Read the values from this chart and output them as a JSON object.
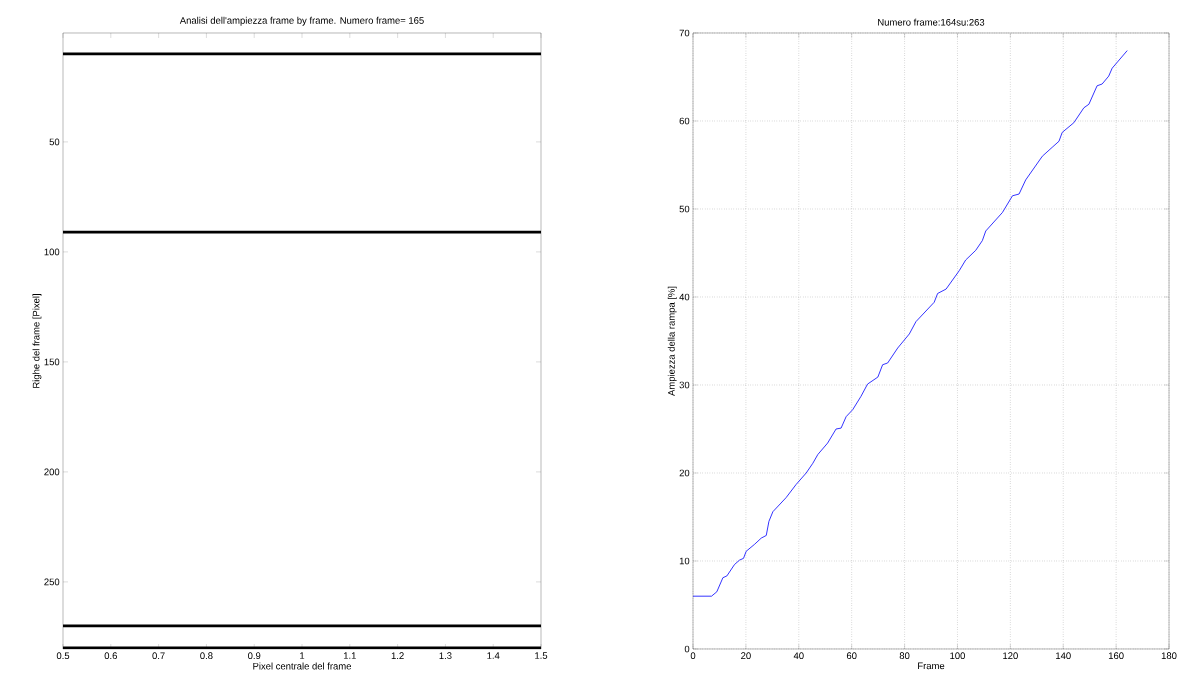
{
  "chart_data": [
    {
      "type": "line",
      "title": "Analisi dell'ampiezza frame by frame.  Numero frame= 165",
      "xlabel": "Pixel centrale del frame",
      "ylabel": "Righe del frame [Pixel]",
      "xlim": [
        0.5,
        1.5
      ],
      "ylim": [
        280.5,
        0.5
      ],
      "xticks": [
        0.5,
        0.6,
        0.7,
        0.8,
        0.9,
        1,
        1.1,
        1.2,
        1.3,
        1.4,
        1.5
      ],
      "yticks": [
        50,
        100,
        150,
        200,
        250
      ],
      "grid": false,
      "series": [
        {
          "color": "#000000",
          "x": [
            0.5,
            1.5
          ],
          "values": [
            10,
            10
          ]
        },
        {
          "color": "#000000",
          "x": [
            0.5,
            1.5
          ],
          "values": [
            91,
            91
          ]
        },
        {
          "color": "#000000",
          "x": [
            0.5,
            1.5
          ],
          "values": [
            270,
            270
          ]
        },
        {
          "color": "#000000",
          "x": [
            0.5,
            1.5
          ],
          "values": [
            280,
            280
          ]
        }
      ]
    },
    {
      "type": "line",
      "title": "Numero frame:164su:263",
      "xlabel": "Frame",
      "ylabel": "Ampiezza della rampa [%]",
      "xlim": [
        0,
        180
      ],
      "ylim": [
        0,
        70
      ],
      "xticks": [
        0,
        20,
        40,
        60,
        80,
        100,
        120,
        140,
        160,
        180
      ],
      "yticks": [
        0,
        10,
        20,
        30,
        40,
        50,
        60,
        70
      ],
      "grid": true,
      "line_style": "solid",
      "series": [
        {
          "color": "#0000ff",
          "x": [
            0,
            7,
            9,
            11.3,
            12.8,
            15.7,
            17.6,
            19.1,
            20.1,
            23.3,
            25.8,
            27.7,
            28.7,
            30.2,
            35.2,
            39,
            42.8,
            45.3,
            47.2,
            50.9,
            54.1,
            56,
            57.9,
            60.4,
            63.5,
            66,
            69.9,
            71.7,
            73.6,
            77.4,
            81.8,
            84.3,
            91.2,
            92.5,
            95.7,
            100.7,
            103.1,
            106.9,
            109.4,
            110.7,
            117,
            120.8,
            123.3,
            125.8,
            132.1,
            135.8,
            138.4,
            139.6,
            144,
            147.8,
            149.7,
            152.8,
            154.7,
            157.2,
            158.5,
            164.2
          ],
          "values": [
            6,
            6,
            6.5,
            8.1,
            8.3,
            9.6,
            10.1,
            10.3,
            11.1,
            11.9,
            12.6,
            12.9,
            14.5,
            15.6,
            17.2,
            18.7,
            20,
            21.1,
            22.1,
            23.4,
            25,
            25.1,
            26.4,
            27.2,
            28.7,
            30.1,
            30.9,
            32.3,
            32.5,
            34.2,
            35.8,
            37.2,
            39.4,
            40.4,
            40.9,
            43,
            44.2,
            45.3,
            46.4,
            47.5,
            49.6,
            51.5,
            51.7,
            53.3,
            56,
            57,
            57.7,
            58.7,
            59.8,
            61.5,
            61.9,
            64,
            64.2,
            65.1,
            66,
            68
          ]
        }
      ]
    }
  ]
}
